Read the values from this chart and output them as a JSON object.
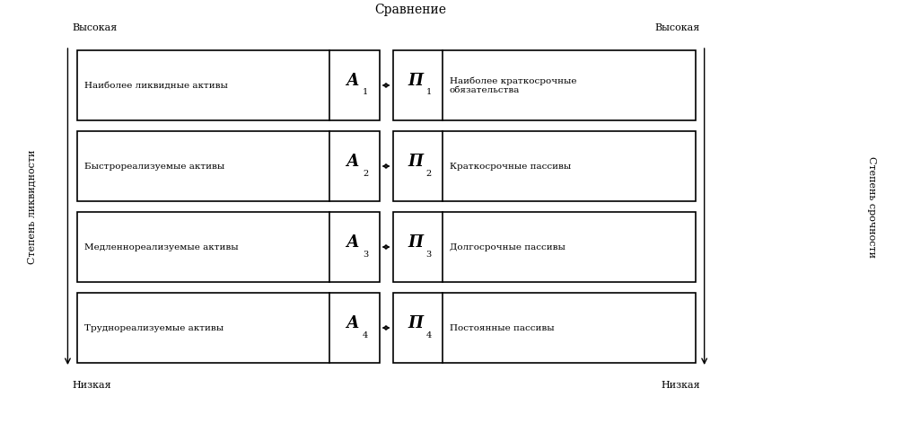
{
  "title": "Сравнение",
  "left_axis_label": "Степень ликвидности",
  "right_axis_label": "Степень срочности",
  "top_left": "Высокая",
  "top_right": "Высокая",
  "bottom_left": "Низкая",
  "bottom_right": "Низкая",
  "rows": [
    {
      "left_text": "Наиболее ликвидные активы",
      "left_symbol": "А",
      "left_sub": "1",
      "right_symbol": "П",
      "right_sub": "1",
      "right_text": "Наиболее краткосрочные\nобязательства"
    },
    {
      "left_text": "Быстрореализуемые активы",
      "left_symbol": "А",
      "left_sub": "2",
      "right_symbol": "П",
      "right_sub": "2",
      "right_text": "Краткосрочные пассивы"
    },
    {
      "left_text": "Медленнореализуемые активы",
      "left_symbol": "А",
      "left_sub": "3",
      "right_symbol": "П",
      "right_sub": "3",
      "right_text": "Долгосрочные пассивы"
    },
    {
      "left_text": "Труднореализуемые активы",
      "left_symbol": "А",
      "left_sub": "4",
      "right_symbol": "П",
      "right_sub": "4",
      "right_text": "Постоянные пассивы"
    }
  ],
  "bg_color": "#ffffff",
  "box_fill": "#ffffff",
  "box_edge": "#000000",
  "symbol_box_fill": "#ffffff",
  "arrow_color": "#000000",
  "fig_width": 10.06,
  "fig_height": 4.91,
  "dpi": 100
}
